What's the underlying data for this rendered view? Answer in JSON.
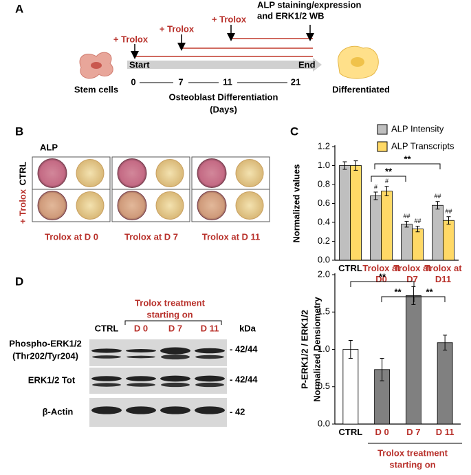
{
  "panel_a": {
    "label": "A",
    "treatment_labels": [
      "+ Trolox",
      "+ Trolox",
      "+ Trolox"
    ],
    "endpoint_lines": [
      "ALP staining/expression",
      "and ERK1/2 WB"
    ],
    "start": "Start",
    "end": "End",
    "days": [
      "0",
      "7",
      "11",
      "21"
    ],
    "left_caption": "Stem cells",
    "axis_lines": [
      "Osteoblast Differentiation",
      "(Days)"
    ],
    "right_caption": "Differentiated"
  },
  "panel_b": {
    "label": "B",
    "stain": "ALP",
    "rows": [
      "CTRL",
      "+ Trolox"
    ],
    "columns": [
      "Trolox at D 0",
      "Trolox at D 7",
      "Trolox at D 11"
    ]
  },
  "panel_d_blot": {
    "label": "D",
    "treatment_lines": [
      "Trolox treatment",
      "starting on"
    ],
    "lanes": [
      "CTRL",
      "D 0",
      "D 7",
      "D 11"
    ],
    "size_unit": "kDa",
    "rows": [
      {
        "name_lines": [
          "Phospho-ERK1/2",
          "(Thr202/Tyr204)"
        ],
        "size": "- 42/44"
      },
      {
        "name_lines": [
          "ERK1/2 Tot"
        ],
        "size": "- 42/44"
      },
      {
        "name_lines": [
          "β-Actin"
        ],
        "size": "- 42"
      }
    ]
  },
  "chart_data": [
    {
      "type": "bar",
      "label": "C",
      "y_label_lines": [
        "Normalized values"
      ],
      "categories": [
        "CTRL",
        "Trolox at D0",
        "Trolox at D7",
        "Trolox at D11"
      ],
      "label_colors": [
        "#000000",
        "#b8302a",
        "#b8302a",
        "#b8302a"
      ],
      "series": [
        {
          "name": "ALP Intensity",
          "color": "#bfbfbf",
          "values": [
            1.0,
            0.68,
            0.38,
            0.58
          ],
          "errors": [
            0.04,
            0.04,
            0.03,
            0.04
          ],
          "significance": [
            null,
            "#",
            "##",
            "##"
          ]
        },
        {
          "name": "ALP Transcripts",
          "color": "#ffd966",
          "values": [
            1.0,
            0.73,
            0.33,
            0.42
          ],
          "errors": [
            0.05,
            0.05,
            0.03,
            0.04
          ],
          "significance": [
            null,
            "#",
            "##",
            "##"
          ]
        }
      ],
      "annotations": [
        "**",
        "**"
      ],
      "ylim": [
        0,
        1.2
      ],
      "yticks": [
        {
          "value": 0,
          "label": "0.0"
        },
        0.2,
        0.4,
        0.6,
        0.8,
        {
          "value": 1,
          "label": "1.0"
        },
        1.2
      ],
      "legend": "top-right"
    },
    {
      "type": "bar",
      "y_label_lines": [
        "P-ERK1/2 / ERK1/2",
        "Normalized Densiometry"
      ],
      "categories": [
        "CTRL",
        "D 0",
        "D 7",
        "D 11"
      ],
      "label_colors": [
        "#000000",
        "#b8302a",
        "#b8302a",
        "#b8302a"
      ],
      "values": [
        1.0,
        0.73,
        1.72,
        1.09
      ],
      "errors": [
        0.12,
        0.15,
        0.12,
        0.1
      ],
      "colors": [
        "#ffffff",
        "#808080",
        "#808080",
        "#808080"
      ],
      "annotations": [
        "**",
        "**",
        "**"
      ],
      "x_caption_lines": [
        "Trolox treatment",
        "starting on"
      ],
      "ylim": [
        0,
        2
      ],
      "yticks": [
        {
          "value": 0,
          "label": "0.0"
        },
        {
          "value": 0.5,
          "label": "0.5"
        },
        {
          "value": 1,
          "label": "1.0"
        },
        {
          "value": 1.5,
          "label": "1.5"
        },
        {
          "value": 2,
          "label": "2.0"
        }
      ]
    }
  ]
}
